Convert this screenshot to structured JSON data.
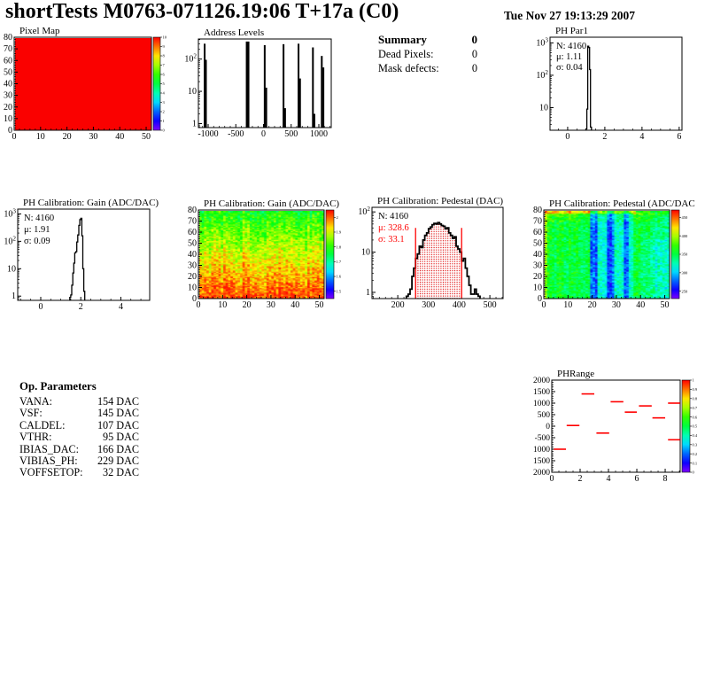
{
  "header": {
    "title": "shortTests M0763-071126.19:06 T+17a (C0)",
    "date": "Tue Nov 27 19:13:29 2007"
  },
  "summary": {
    "heading": "Summary",
    "heading_value": "0",
    "rows": [
      {
        "label": "Dead Pixels:",
        "value": "0"
      },
      {
        "label": "Mask defects:",
        "value": "0"
      }
    ]
  },
  "op_parameters": {
    "heading": "Op. Parameters",
    "rows": [
      {
        "label": "VANA:",
        "value": "154 DAC"
      },
      {
        "label": "VSF:",
        "value": "145 DAC"
      },
      {
        "label": "CALDEL:",
        "value": "107 DAC"
      },
      {
        "label": "VTHR:",
        "value": "95 DAC"
      },
      {
        "label": "IBIAS_DAC:",
        "value": "166 DAC"
      },
      {
        "label": "VIBIAS_PH:",
        "value": "229 DAC"
      },
      {
        "label": "VOFFSETOP:",
        "value": "32 DAC"
      }
    ]
  },
  "colors": {
    "accent_red": "#ff0000",
    "ink": "#000000",
    "map_red": "#fa0100"
  },
  "chart_data": [
    {
      "id": "pixel-map",
      "type": "heatmap",
      "title": "Pixel Map",
      "pattern": "uniform",
      "uniform_value": 10,
      "x_range": [
        0,
        52
      ],
      "y_range": [
        0,
        80
      ],
      "x_minor": 2,
      "y_minor": 2,
      "x_ticks": [
        [
          0,
          "0"
        ],
        [
          10,
          "10"
        ],
        [
          20,
          "20"
        ],
        [
          30,
          "30"
        ],
        [
          40,
          "40"
        ],
        [
          50,
          "50"
        ]
      ],
      "y_ticks": [
        [
          0,
          "0"
        ],
        [
          10,
          "10"
        ],
        [
          20,
          "20"
        ],
        [
          30,
          "30"
        ],
        [
          40,
          "40"
        ],
        [
          50,
          "50"
        ],
        [
          60,
          "60"
        ],
        [
          70,
          "70"
        ],
        [
          80,
          "80"
        ]
      ],
      "colorbar": {
        "labels": [
          "10",
          "9",
          "8",
          "7",
          "6",
          "5",
          "4",
          "3",
          "2",
          "1",
          "0"
        ],
        "span": [
          0,
          1
        ]
      }
    },
    {
      "id": "address-levels",
      "type": "spikes",
      "title": "Address Levels",
      "y_scale": "log",
      "x_range": [
        -1176,
        1224
      ],
      "y_range": [
        0.75,
        420
      ],
      "x_minor": 100,
      "x_ticks": [
        [
          -1000,
          "-1000"
        ],
        [
          -500,
          "-500"
        ],
        [
          0,
          "0"
        ],
        [
          500,
          "500"
        ],
        [
          1000,
          "1000"
        ]
      ],
      "y_ticks": [
        [
          1,
          "1"
        ],
        [
          10,
          "10"
        ],
        [
          100,
          "10^2"
        ]
      ],
      "spikes": [
        [
          -1063,
          300,
          2
        ],
        [
          -1040,
          95,
          2
        ],
        [
          -287,
          350,
          4
        ],
        [
          22,
          270,
          2
        ],
        [
          50,
          13,
          2
        ],
        [
          362,
          290,
          2
        ],
        [
          390,
          3,
          2
        ],
        [
          633,
          300,
          2
        ],
        [
          660,
          25,
          2
        ],
        [
          893,
          230,
          2
        ],
        [
          920,
          2,
          2
        ],
        [
          1053,
          125,
          2
        ],
        [
          1082,
          55,
          2
        ]
      ]
    },
    {
      "id": "ph-par1",
      "type": "hist",
      "title": "PH Par1",
      "y_scale": "log",
      "stats": [
        [
          "N: 4160",
          "#000000"
        ],
        [
          "μ: 1.11",
          "#000000"
        ],
        [
          "σ: 0.04",
          "#000000"
        ]
      ],
      "x_range": [
        -0.95,
        6.15
      ],
      "x_minor": 0.5,
      "x_ticks": [
        [
          0,
          "0"
        ],
        [
          2,
          "2"
        ],
        [
          4,
          "4"
        ],
        [
          6,
          "6"
        ]
      ],
      "y_range": [
        2,
        1500
      ],
      "y_ticks": [
        [
          10,
          "10"
        ],
        [
          100,
          "10^2"
        ],
        [
          1000,
          "10^3"
        ]
      ],
      "bin_width": 0.05,
      "bins": [
        [
          0.98,
          2.2
        ],
        [
          1.03,
          9
        ],
        [
          1.08,
          790
        ],
        [
          1.13,
          720
        ],
        [
          1.18,
          150
        ],
        [
          1.23,
          2.5
        ]
      ]
    },
    {
      "id": "gain-hist",
      "type": "hist",
      "title": "PH Calibration: Gain (ADC/DAC)",
      "y_scale": "log",
      "stats": [
        [
          "N: 4160",
          "#000000"
        ],
        [
          "μ: 1.91",
          "#000000"
        ],
        [
          "σ: 0.09",
          "#000000"
        ]
      ],
      "x_range": [
        -1.15,
        5.44
      ],
      "x_minor": 0.5,
      "x_ticks": [
        [
          0,
          "0"
        ],
        [
          2,
          "2"
        ],
        [
          4,
          "4"
        ]
      ],
      "y_range": [
        0.7,
        1500
      ],
      "y_ticks": [
        [
          1,
          "1"
        ],
        [
          10,
          "10"
        ],
        [
          100,
          "10^2"
        ],
        [
          1000,
          "10^3"
        ]
      ],
      "bin_width": 0.05,
      "bins": [
        [
          1.45,
          0.9
        ],
        [
          1.5,
          1.1
        ],
        [
          1.55,
          2.5
        ],
        [
          1.6,
          7
        ],
        [
          1.65,
          16
        ],
        [
          1.7,
          38
        ],
        [
          1.75,
          42
        ],
        [
          1.8,
          95
        ],
        [
          1.85,
          170
        ],
        [
          1.9,
          380
        ],
        [
          1.95,
          620
        ],
        [
          2.0,
          690
        ],
        [
          2.05,
          160
        ],
        [
          2.1,
          10
        ],
        [
          2.15,
          1.5
        ]
      ]
    },
    {
      "id": "gain-map",
      "type": "heatmap",
      "title": "PH Calibration: Gain (ADC/DAC)",
      "pattern": "gain",
      "value_range": [
        1.45,
        2.05
      ],
      "x_range": [
        0,
        52
      ],
      "y_range": [
        0,
        80
      ],
      "x_minor": 2,
      "y_minor": 2,
      "x_ticks": [
        [
          0,
          "0"
        ],
        [
          10,
          "10"
        ],
        [
          20,
          "20"
        ],
        [
          30,
          "30"
        ],
        [
          40,
          "40"
        ],
        [
          50,
          "50"
        ]
      ],
      "y_ticks": [
        [
          0,
          "0"
        ],
        [
          10,
          "10"
        ],
        [
          20,
          "20"
        ],
        [
          30,
          "30"
        ],
        [
          40,
          "40"
        ],
        [
          50,
          "50"
        ],
        [
          60,
          "60"
        ],
        [
          70,
          "70"
        ],
        [
          80,
          "80"
        ]
      ],
      "colorbar": {
        "labels": [
          "2",
          "1.9",
          "1.8",
          "1.7",
          "1.6",
          "1.5"
        ],
        "span": [
          0.083,
          0.917
        ]
      }
    },
    {
      "id": "pedestal-hist",
      "type": "hist-pedestal",
      "title": "PH Calibration: Pedestal (DAC)",
      "y_scale": "log",
      "stats": [
        [
          "N: 4160",
          "#000000"
        ],
        [
          "μ: 328.6",
          "#ff0000"
        ],
        [
          "σ: 33.1",
          "#ff0000"
        ]
      ],
      "x_range": [
        116,
        543
      ],
      "x_minor": 20,
      "x_ticks": [
        [
          200,
          "200"
        ],
        [
          300,
          "300"
        ],
        [
          400,
          "400"
        ],
        [
          500,
          "500"
        ]
      ],
      "y_range": [
        0.7,
        130
      ],
      "y_ticks": [
        [
          1,
          "1"
        ],
        [
          10,
          "10"
        ],
        [
          100,
          "10^2"
        ]
      ],
      "bin_width": 6,
      "marker_lines": [
        258,
        408
      ],
      "bins": [
        [
          228,
          0.8
        ],
        [
          234,
          0.9
        ],
        [
          240,
          1.2
        ],
        [
          246,
          2.5
        ],
        [
          252,
          4
        ],
        [
          258,
          7
        ],
        [
          264,
          9
        ],
        [
          270,
          14
        ],
        [
          276,
          13
        ],
        [
          282,
          20
        ],
        [
          288,
          26
        ],
        [
          294,
          30
        ],
        [
          300,
          38
        ],
        [
          306,
          42
        ],
        [
          312,
          48
        ],
        [
          318,
          52
        ],
        [
          324,
          50
        ],
        [
          330,
          54
        ],
        [
          336,
          50
        ],
        [
          342,
          46
        ],
        [
          348,
          44
        ],
        [
          354,
          38
        ],
        [
          360,
          40
        ],
        [
          366,
          30
        ],
        [
          372,
          26
        ],
        [
          378,
          22
        ],
        [
          384,
          24
        ],
        [
          390,
          14
        ],
        [
          396,
          12
        ],
        [
          402,
          10
        ],
        [
          408,
          6
        ],
        [
          414,
          7
        ],
        [
          420,
          4
        ],
        [
          426,
          2.5
        ],
        [
          432,
          1.5
        ],
        [
          438,
          0.9
        ],
        [
          444,
          0.9
        ],
        [
          450,
          1.2
        ],
        [
          456,
          0.9
        ],
        [
          462,
          0.8
        ]
      ]
    },
    {
      "id": "pedestal-map",
      "type": "heatmap",
      "title": "PH Calibration: Pedestal (ADC/DAC",
      "pattern": "pedestal",
      "value_range": [
        230,
        470
      ],
      "stripe_columns": [
        [
          19,
          21
        ],
        [
          26,
          28
        ],
        [
          33,
          34
        ]
      ],
      "x_range": [
        0,
        52
      ],
      "y_range": [
        0,
        80
      ],
      "x_minor": 2,
      "y_minor": 2,
      "x_ticks": [
        [
          0,
          "0"
        ],
        [
          10,
          "10"
        ],
        [
          20,
          "20"
        ],
        [
          30,
          "30"
        ],
        [
          40,
          "40"
        ],
        [
          50,
          "50"
        ]
      ],
      "y_ticks": [
        [
          0,
          "0"
        ],
        [
          10,
          "10"
        ],
        [
          20,
          "20"
        ],
        [
          30,
          "30"
        ],
        [
          40,
          "40"
        ],
        [
          50,
          "50"
        ],
        [
          60,
          "60"
        ],
        [
          70,
          "70"
        ],
        [
          80,
          "80"
        ]
      ],
      "colorbar": {
        "labels": [
          "450",
          "400",
          "350",
          "300",
          "250"
        ],
        "span": [
          0.083,
          0.917
        ]
      }
    },
    {
      "id": "ph-range",
      "type": "segments",
      "title": "PHRange",
      "segment_color": "#ff0000",
      "x_range": [
        0,
        9.06
      ],
      "x_minor": 0.5,
      "y_minor": 100,
      "x_ticks": [
        [
          0,
          "0"
        ],
        [
          2,
          "2"
        ],
        [
          4,
          "4"
        ],
        [
          6,
          "6"
        ],
        [
          8,
          "8"
        ]
      ],
      "y_range": [
        -2000,
        2000
      ],
      "y_ticks": [
        [
          2000,
          "2000"
        ],
        [
          1500,
          "1500"
        ],
        [
          1000,
          "1000"
        ],
        [
          500,
          "500"
        ],
        [
          0,
          "0"
        ],
        [
          -500,
          "-500"
        ],
        [
          -1000,
          "1000"
        ],
        [
          -1500,
          "1500"
        ],
        [
          -2000,
          "2000"
        ]
      ],
      "segments": [
        [
          0.15,
          1.0,
          -1000
        ],
        [
          1.05,
          1.95,
          30
        ],
        [
          2.1,
          3.0,
          1400
        ],
        [
          3.15,
          4.05,
          -300
        ],
        [
          4.15,
          5.05,
          1060
        ],
        [
          5.15,
          6.0,
          610
        ],
        [
          6.15,
          7.05,
          880
        ],
        [
          7.1,
          8.0,
          360
        ],
        [
          8.2,
          9.05,
          1000
        ],
        [
          8.2,
          9.05,
          -590
        ]
      ],
      "colorbar": {
        "labels": [
          "1",
          "0.9",
          "0.8",
          "0.7",
          "0.6",
          "0.5",
          "0.4",
          "0.3",
          "0.2",
          "0.1",
          "0"
        ],
        "span": [
          0,
          1
        ]
      }
    }
  ]
}
